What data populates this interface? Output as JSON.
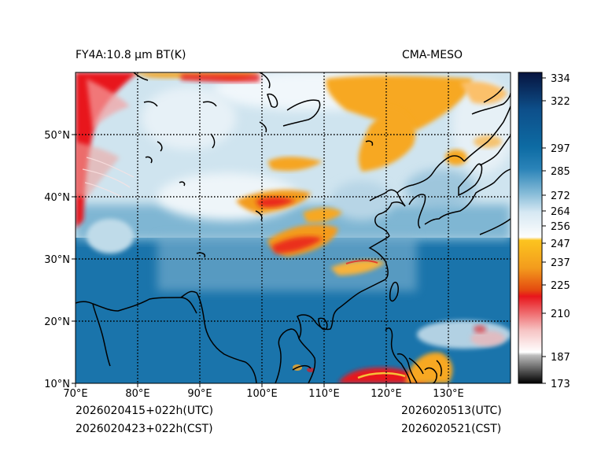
{
  "header": {
    "title_left": "FY4A:10.8 µm BT(K)",
    "title_right": "CMA-MESO"
  },
  "footer": {
    "left_line1": "2026020415+022h(UTC)",
    "left_line2": "2026020423+022h(CST)",
    "right_line1": "2026020513(UTC)",
    "right_line2": "2026020521(CST)"
  },
  "map": {
    "lon_range": [
      70,
      140
    ],
    "lat_range": [
      10,
      60
    ],
    "lon_labels": [
      "70°E",
      "80°E",
      "90°E",
      "100°E",
      "110°E",
      "120°E",
      "130°E"
    ],
    "lat_labels": [
      "10°N",
      "20°N",
      "30°N",
      "40°N",
      "50°N"
    ]
  },
  "colorbar": {
    "range": [
      173,
      337
    ],
    "ticks": [
      "173",
      "187",
      "210",
      "225",
      "237",
      "247",
      "256",
      "264",
      "272",
      "285",
      "297",
      "322",
      "334"
    ],
    "colors": {
      "warm_low": "#1a6fa3",
      "mid_blue": "#7bb5d4",
      "near_white": "#eef6fb",
      "orange": "#f7a823",
      "red": "#e8161b",
      "deep_navy": "#0a1a4f"
    }
  }
}
